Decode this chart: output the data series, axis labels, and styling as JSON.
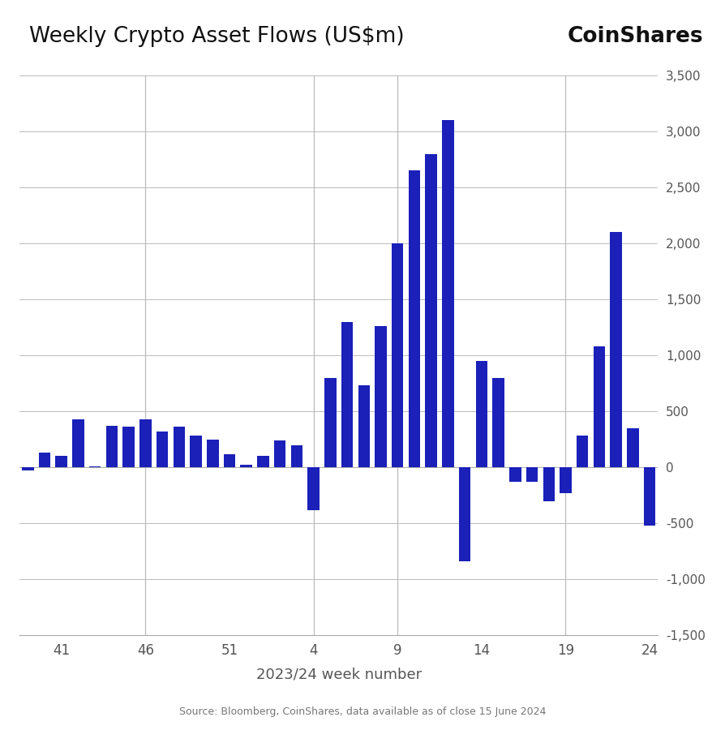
{
  "title": "Weekly Crypto Asset Flows (US$m)",
  "coinshares_label": "CoinShares",
  "xlabel": "2023/24 week number",
  "source_text": "Source: Bloomberg, CoinShares, data available as of close 15 June 2024",
  "bar_color": "#1a20b8",
  "background_color": "#ffffff",
  "ylim": [
    -1500,
    3500
  ],
  "yticks": [
    -1500,
    -1000,
    -500,
    0,
    500,
    1000,
    1500,
    2000,
    2500,
    3000,
    3500
  ],
  "xtick_labels": [
    "41",
    "46",
    "51",
    "4",
    "9",
    "14",
    "19",
    "24"
  ],
  "vline_week_indices": [
    1,
    3,
    6,
    11
  ],
  "weeks": [
    39,
    40,
    41,
    42,
    43,
    44,
    45,
    46,
    47,
    48,
    49,
    50,
    51,
    52,
    1,
    2,
    3,
    4,
    5,
    6,
    7,
    8,
    9,
    10,
    11,
    12,
    13,
    14,
    15,
    16,
    17,
    18,
    19,
    20,
    21,
    22,
    23,
    24
  ],
  "values": [
    -30,
    130,
    100,
    430,
    10,
    370,
    360,
    430,
    320,
    360,
    280,
    250,
    120,
    20,
    100,
    240,
    200,
    -380,
    800,
    1300,
    730,
    1260,
    2000,
    2650,
    2800,
    3100,
    -840,
    950,
    800,
    -130,
    -130,
    -300,
    -230,
    280,
    1080,
    2100,
    350,
    -520
  ]
}
